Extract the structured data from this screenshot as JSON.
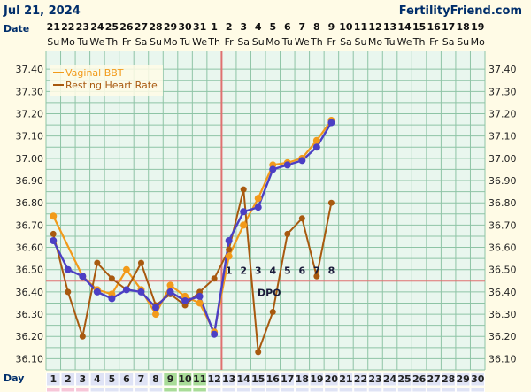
{
  "header": {
    "date": "Jul 21, 2024",
    "site": "FertilityFriend.com"
  },
  "row_labels": {
    "date": "Date",
    "day": "Day"
  },
  "dates": [
    "21",
    "22",
    "23",
    "24",
    "25",
    "26",
    "27",
    "28",
    "29",
    "30",
    "31",
    "1",
    "2",
    "3",
    "4",
    "5",
    "6",
    "7",
    "8",
    "9",
    "10",
    "11",
    "12",
    "13",
    "14",
    "15",
    "16",
    "17",
    "18",
    "19"
  ],
  "weekdays": [
    "Su",
    "Mo",
    "Tu",
    "We",
    "Th",
    "Fr",
    "Sa",
    "Su",
    "Mo",
    "Tu",
    "We",
    "Th",
    "Fr",
    "Sa",
    "Su",
    "Mo",
    "Tu",
    "We",
    "Th",
    "Fr",
    "Sa",
    "Su",
    "Mo",
    "Tu",
    "We",
    "Th",
    "Fr",
    "Sa",
    "Su",
    "Mo"
  ],
  "cycle_days": [
    "1",
    "2",
    "3",
    "4",
    "5",
    "6",
    "7",
    "8",
    "9",
    "10",
    "11",
    "12",
    "13",
    "14",
    "15",
    "16",
    "17",
    "18",
    "19",
    "20",
    "21",
    "22",
    "23",
    "24",
    "25",
    "26",
    "27",
    "28",
    "29",
    "30"
  ],
  "colors": {
    "bbt": "#f29a1a",
    "hr": "#a8590f",
    "adjusted": "#4c3fc4",
    "coverline": "#e07070",
    "ovulation": "#e07070",
    "fertile_cells": "#a9dc98",
    "grid": "#8ec4a6",
    "plot_bg": "#e9f6ee",
    "period_cells": "#f7c6d8",
    "day_cells": "#dfe3f5"
  },
  "chart_data": {
    "type": "line",
    "ylim": [
      36.05,
      37.48
    ],
    "y_ticks": [
      "37.40",
      "37.30",
      "37.20",
      "37.10",
      "37.00",
      "36.90",
      "36.80",
      "36.70",
      "36.60",
      "36.50",
      "36.40",
      "36.30",
      "36.20",
      "36.10"
    ],
    "coverline": 36.45,
    "ovulation_day": 12,
    "fertile_days": [
      9,
      10,
      11
    ],
    "dpo_label": "DPO",
    "dpo_markers": [
      {
        "day": 13,
        "label": "1"
      },
      {
        "day": 14,
        "label": "2"
      },
      {
        "day": 15,
        "label": "3"
      },
      {
        "day": 16,
        "label": "4"
      },
      {
        "day": 17,
        "label": "5"
      },
      {
        "day": 18,
        "label": "6"
      },
      {
        "day": 19,
        "label": "7"
      },
      {
        "day": 20,
        "label": "8"
      }
    ],
    "series": [
      {
        "name": "Vaginal BBT",
        "days": [
          1,
          3,
          4,
          5,
          6,
          7,
          8,
          9,
          10,
          11,
          12,
          13,
          14,
          15,
          16,
          17,
          18,
          19,
          20
        ],
        "values": [
          36.74,
          36.47,
          36.41,
          36.39,
          36.5,
          36.41,
          36.3,
          36.43,
          36.38,
          36.35,
          36.22,
          36.56,
          36.7,
          36.82,
          36.97,
          36.98,
          37.0,
          37.08,
          37.17
        ]
      },
      {
        "name": "Resting Heart Rate",
        "days": [
          1,
          2,
          3,
          4,
          5,
          6,
          7,
          8,
          9,
          10,
          11,
          12,
          13,
          14,
          15,
          16,
          17,
          18,
          19,
          20
        ],
        "values": [
          36.66,
          36.4,
          36.2,
          36.53,
          36.46,
          36.41,
          36.53,
          36.34,
          36.39,
          36.34,
          36.4,
          36.46,
          36.59,
          36.86,
          36.13,
          36.31,
          36.66,
          36.73,
          36.47,
          36.8
        ]
      },
      {
        "days": [
          1,
          2,
          3,
          4,
          5,
          6,
          7,
          8,
          9,
          10,
          11,
          12,
          13,
          14,
          15,
          16,
          17,
          18,
          19,
          20
        ],
        "values": [
          36.63,
          36.5,
          36.47,
          36.4,
          36.37,
          36.41,
          36.4,
          36.33,
          36.4,
          36.36,
          36.38,
          36.21,
          36.63,
          36.76,
          36.78,
          36.95,
          36.97,
          36.99,
          37.05,
          37.16
        ]
      }
    ]
  }
}
